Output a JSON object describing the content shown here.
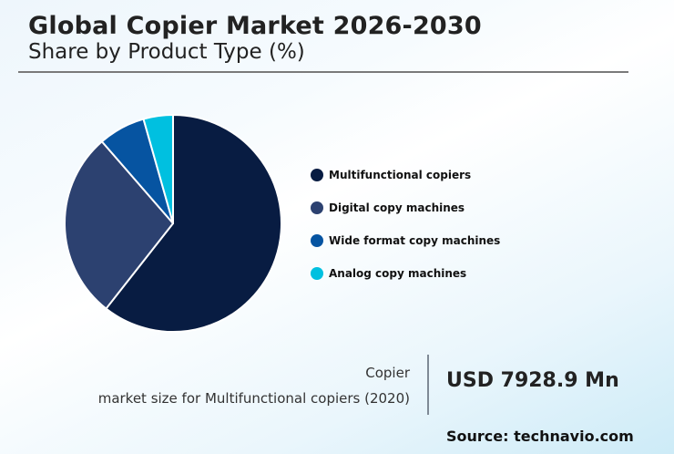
{
  "header": {
    "title": "Global Copier Market 2026-2030",
    "subtitle": "Share by Product Type (%)"
  },
  "legend": {
    "items": [
      {
        "label": "Multifunctional copiers",
        "color": "#081c42"
      },
      {
        "label": "Digital copy machines",
        "color": "#2c4170"
      },
      {
        "label": "Wide format copy machines",
        "color": "#0654a1"
      },
      {
        "label": "Analog copy machines",
        "color": "#00c0e0"
      }
    ]
  },
  "stat": {
    "label_line1": "Copier",
    "label_line2": "market size for Multifunctional copiers (2020)",
    "value": "USD 7928.9 Mn"
  },
  "footer": {
    "source": "Source: technavio.com"
  },
  "chart_data": {
    "type": "pie",
    "title": "Global Copier Market 2026-2030",
    "subtitle": "Share by Product Type (%)",
    "categories": [
      "Multifunctional copiers",
      "Digital copy machines",
      "Wide format copy machines",
      "Analog copy machines"
    ],
    "values": [
      60.6,
      28.0,
      7.0,
      4.4
    ],
    "colors": [
      "#081c42",
      "#2c4170",
      "#0654a1",
      "#00c0e0"
    ],
    "start_angle": "12 o'clock, clockwise",
    "legend_position": "right",
    "annotation": "Copier market size for Multifunctional copiers (2020): USD 7928.9 Mn"
  }
}
